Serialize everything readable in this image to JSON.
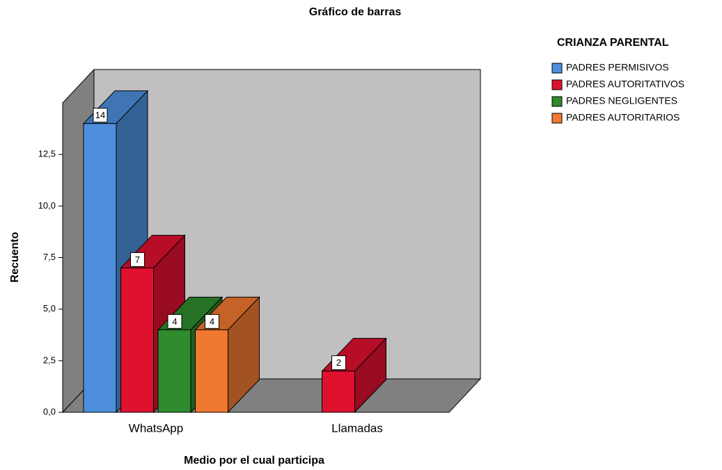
{
  "chart_data": {
    "type": "bar3d",
    "title": "Gráfico de barras",
    "x_label": "Medio por el cual participa",
    "y_label": "Recuento",
    "legend_title": "CRIANZA PARENTAL",
    "legend_position": "right",
    "categories": [
      "WhatsApp",
      "Llamadas"
    ],
    "series": [
      {
        "name": "PADRES PERMISIVOS",
        "color": "#4d8fdc",
        "values": [
          14,
          null
        ]
      },
      {
        "name": "PADRES AUTORITATIVOS",
        "color": "#e0102f",
        "values": [
          7,
          2
        ]
      },
      {
        "name": "PADRES NEGLIGENTES",
        "color": "#2e8b2e",
        "values": [
          4,
          null
        ]
      },
      {
        "name": "PADRES AUTORITARIOS",
        "color": "#f07830",
        "values": [
          4,
          null
        ]
      }
    ],
    "ylim": [
      0,
      15
    ],
    "yticks": [
      {
        "value": 0,
        "label": "0,0"
      },
      {
        "value": 2.5,
        "label": "2,5"
      },
      {
        "value": 5,
        "label": "5,0"
      },
      {
        "value": 7.5,
        "label": "7,5"
      },
      {
        "value": 10,
        "label": "10,0"
      },
      {
        "value": 12.5,
        "label": "12,5"
      }
    ]
  }
}
